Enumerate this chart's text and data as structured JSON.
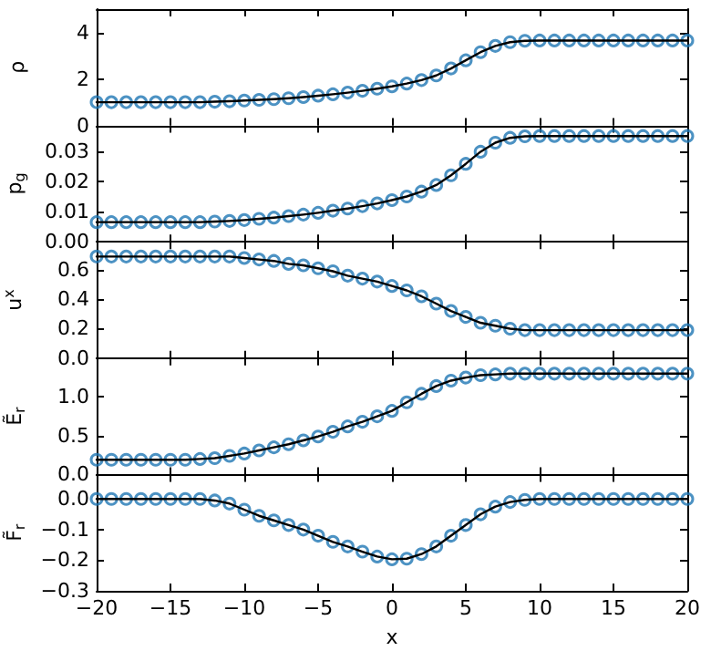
{
  "chart_data": [
    {
      "type": "line",
      "ylabel": "ρ",
      "tick_labels": "y",
      "grid": false,
      "xlim": [
        -20,
        20
      ],
      "xticks": [
        -20,
        -15,
        -10,
        -5,
        0,
        5,
        10,
        15,
        20
      ],
      "ylim": [
        0,
        5
      ],
      "yticks": [
        0,
        2,
        4
      ],
      "x": [
        -20,
        -19,
        -18,
        -17,
        -16,
        -15,
        -14,
        -13,
        -12,
        -11,
        -10,
        -9,
        -8,
        -7,
        -6,
        -5,
        -4,
        -3,
        -2,
        -1,
        0,
        1,
        2,
        3,
        4,
        5,
        6,
        7,
        8,
        9,
        10,
        11,
        12,
        13,
        14,
        15,
        16,
        17,
        18,
        19,
        20
      ],
      "series": [
        {
          "type": "line",
          "color": "#000000",
          "marker": "none",
          "line_style": "solid",
          "values": [
            1.0,
            1.0,
            1.0,
            1.0,
            1.0,
            1.0,
            1.0,
            1.0,
            1.02,
            1.04,
            1.07,
            1.1,
            1.13,
            1.17,
            1.22,
            1.28,
            1.34,
            1.41,
            1.49,
            1.58,
            1.68,
            1.8,
            1.95,
            2.15,
            2.45,
            2.8,
            3.15,
            3.42,
            3.58,
            3.64,
            3.65,
            3.65,
            3.65,
            3.65,
            3.65,
            3.65,
            3.65,
            3.65,
            3.65,
            3.65,
            3.65
          ]
        },
        {
          "type": "scatter",
          "color": "#1f77b4",
          "marker": "circle",
          "values": [
            1.0,
            1.0,
            1.0,
            1.0,
            1.0,
            1.0,
            1.0,
            1.0,
            1.02,
            1.04,
            1.07,
            1.1,
            1.13,
            1.17,
            1.22,
            1.28,
            1.34,
            1.41,
            1.49,
            1.58,
            1.68,
            1.8,
            1.95,
            2.15,
            2.45,
            2.8,
            3.15,
            3.42,
            3.58,
            3.64,
            3.65,
            3.65,
            3.65,
            3.65,
            3.65,
            3.65,
            3.65,
            3.65,
            3.65,
            3.65,
            3.65
          ]
        }
      ]
    },
    {
      "type": "line",
      "ylabel": "p$_{g}$",
      "tick_labels": "y",
      "grid": false,
      "xlim": [
        -20,
        20
      ],
      "xticks": [
        -20,
        -15,
        -10,
        -5,
        0,
        5,
        10,
        15,
        20
      ],
      "ylim": [
        0,
        0.0385
      ],
      "yticks": [
        {
          "value": 0,
          "label": "0.00"
        },
        {
          "value": 0.01,
          "label": "0.01"
        },
        {
          "value": 0.02,
          "label": "0.02"
        },
        {
          "value": 0.03,
          "label": "0.03"
        }
      ],
      "x": [
        -20,
        -19,
        -18,
        -17,
        -16,
        -15,
        -14,
        -13,
        -12,
        -11,
        -10,
        -9,
        -8,
        -7,
        -6,
        -5,
        -4,
        -3,
        -2,
        -1,
        0,
        1,
        2,
        3,
        4,
        5,
        6,
        7,
        8,
        9,
        10,
        11,
        12,
        13,
        14,
        15,
        16,
        17,
        18,
        19,
        20
      ],
      "series": [
        {
          "type": "line",
          "color": "#000000",
          "marker": "none",
          "line_style": "solid",
          "values": [
            0.0065,
            0.0065,
            0.0065,
            0.0065,
            0.0065,
            0.0065,
            0.0065,
            0.0065,
            0.0067,
            0.0069,
            0.0072,
            0.0076,
            0.008,
            0.0085,
            0.009,
            0.0096,
            0.0103,
            0.011,
            0.0118,
            0.0127,
            0.0138,
            0.015,
            0.0166,
            0.0188,
            0.022,
            0.0258,
            0.0298,
            0.0328,
            0.0344,
            0.0349,
            0.035,
            0.035,
            0.035,
            0.035,
            0.035,
            0.035,
            0.035,
            0.035,
            0.035,
            0.035,
            0.035
          ]
        },
        {
          "type": "scatter",
          "color": "#1f77b4",
          "marker": "circle",
          "values": [
            0.0065,
            0.0065,
            0.0065,
            0.0065,
            0.0065,
            0.0065,
            0.0065,
            0.0065,
            0.0067,
            0.0069,
            0.0072,
            0.0076,
            0.008,
            0.0085,
            0.009,
            0.0096,
            0.0103,
            0.011,
            0.0118,
            0.0127,
            0.0138,
            0.015,
            0.0166,
            0.0188,
            0.022,
            0.0258,
            0.0298,
            0.0328,
            0.0344,
            0.0349,
            0.035,
            0.035,
            0.035,
            0.035,
            0.035,
            0.035,
            0.035,
            0.035,
            0.035,
            0.035,
            0.035
          ]
        }
      ]
    },
    {
      "type": "line",
      "ylabel": "u$^{x}$",
      "tick_labels": "y",
      "grid": false,
      "xlim": [
        -20,
        20
      ],
      "xticks": [
        -20,
        -15,
        -10,
        -5,
        0,
        5,
        10,
        15,
        20
      ],
      "ylim": [
        0,
        0.79
      ],
      "yticks": [
        {
          "value": 0,
          "label": "0.0"
        },
        {
          "value": 0.2,
          "label": "0.2"
        },
        {
          "value": 0.4,
          "label": "0.4"
        },
        {
          "value": 0.6,
          "label": "0.6"
        }
      ],
      "x": [
        -20,
        -19,
        -18,
        -17,
        -16,
        -15,
        -14,
        -13,
        -12,
        -11,
        -10,
        -9,
        -8,
        -7,
        -6,
        -5,
        -4,
        -3,
        -2,
        -1,
        0,
        1,
        2,
        3,
        4,
        5,
        6,
        7,
        8,
        9,
        10,
        11,
        12,
        13,
        14,
        15,
        16,
        17,
        18,
        19,
        20
      ],
      "series": [
        {
          "type": "line",
          "color": "#000000",
          "marker": "none",
          "line_style": "solid",
          "values": [
            0.69,
            0.69,
            0.69,
            0.69,
            0.69,
            0.69,
            0.69,
            0.69,
            0.69,
            0.69,
            0.68,
            0.67,
            0.66,
            0.64,
            0.63,
            0.61,
            0.59,
            0.56,
            0.54,
            0.52,
            0.49,
            0.46,
            0.42,
            0.37,
            0.32,
            0.28,
            0.24,
            0.22,
            0.2,
            0.19,
            0.19,
            0.19,
            0.19,
            0.19,
            0.19,
            0.19,
            0.19,
            0.19,
            0.19,
            0.19,
            0.19
          ]
        },
        {
          "type": "scatter",
          "color": "#1f77b4",
          "marker": "circle",
          "values": [
            0.69,
            0.69,
            0.69,
            0.69,
            0.69,
            0.69,
            0.69,
            0.69,
            0.69,
            0.69,
            0.68,
            0.67,
            0.66,
            0.64,
            0.63,
            0.61,
            0.59,
            0.56,
            0.54,
            0.52,
            0.49,
            0.46,
            0.42,
            0.37,
            0.32,
            0.28,
            0.24,
            0.22,
            0.2,
            0.19,
            0.19,
            0.19,
            0.19,
            0.19,
            0.19,
            0.19,
            0.19,
            0.19,
            0.19,
            0.19,
            0.19
          ]
        }
      ]
    },
    {
      "type": "line",
      "ylabel": "Ẽ$_{r}$",
      "tick_labels": "y",
      "grid": false,
      "xlim": [
        -20,
        20
      ],
      "xticks": [
        -20,
        -15,
        -10,
        -5,
        0,
        5,
        10,
        15,
        20
      ],
      "ylim": [
        0,
        1.5
      ],
      "yticks": [
        {
          "value": 0,
          "label": "0.0"
        },
        {
          "value": 0.5,
          "label": "0.5"
        },
        {
          "value": 1,
          "label": "1.0"
        }
      ],
      "x": [
        -20,
        -19,
        -18,
        -17,
        -16,
        -15,
        -14,
        -13,
        -12,
        -11,
        -10,
        -9,
        -8,
        -7,
        -6,
        -5,
        -4,
        -3,
        -2,
        -1,
        0,
        1,
        2,
        3,
        4,
        5,
        6,
        7,
        8,
        9,
        10,
        11,
        12,
        13,
        14,
        15,
        16,
        17,
        18,
        19,
        20
      ],
      "series": [
        {
          "type": "line",
          "color": "#000000",
          "marker": "none",
          "line_style": "solid",
          "values": [
            0.19,
            0.19,
            0.19,
            0.19,
            0.19,
            0.19,
            0.19,
            0.2,
            0.21,
            0.24,
            0.27,
            0.31,
            0.35,
            0.39,
            0.44,
            0.49,
            0.55,
            0.62,
            0.68,
            0.75,
            0.82,
            0.93,
            1.04,
            1.14,
            1.21,
            1.25,
            1.28,
            1.29,
            1.3,
            1.3,
            1.3,
            1.3,
            1.3,
            1.3,
            1.3,
            1.3,
            1.3,
            1.3,
            1.3,
            1.3,
            1.3
          ]
        },
        {
          "type": "scatter",
          "color": "#1f77b4",
          "marker": "circle",
          "values": [
            0.19,
            0.19,
            0.19,
            0.19,
            0.19,
            0.19,
            0.19,
            0.2,
            0.21,
            0.24,
            0.27,
            0.31,
            0.35,
            0.39,
            0.44,
            0.49,
            0.55,
            0.62,
            0.68,
            0.75,
            0.82,
            0.93,
            1.04,
            1.14,
            1.21,
            1.25,
            1.28,
            1.29,
            1.3,
            1.3,
            1.3,
            1.3,
            1.3,
            1.3,
            1.3,
            1.3,
            1.3,
            1.3,
            1.3,
            1.3,
            1.3
          ]
        }
      ]
    },
    {
      "type": "line",
      "ylabel": "F̃$_{r}$",
      "xlabel": "x",
      "grid": false,
      "xlim": [
        -20,
        20
      ],
      "xticks": [
        {
          "value": -20,
          "label": "−20"
        },
        {
          "value": -15,
          "label": "−15"
        },
        {
          "value": -10,
          "label": "−10"
        },
        {
          "value": -5,
          "label": "−5"
        },
        0,
        5,
        10,
        15,
        20
      ],
      "ylim": [
        -0.3,
        0.08
      ],
      "yticks": [
        {
          "value": -0.3,
          "label": "−0.3"
        },
        {
          "value": -0.2,
          "label": "−0.2"
        },
        {
          "value": -0.1,
          "label": "−0.1"
        },
        {
          "value": 0,
          "label": "0.0"
        }
      ],
      "x": [
        -20,
        -19,
        -18,
        -17,
        -16,
        -15,
        -14,
        -13,
        -12,
        -11,
        -10,
        -9,
        -8,
        -7,
        -6,
        -5,
        -4,
        -3,
        -2,
        -1,
        0,
        1,
        2,
        3,
        4,
        5,
        6,
        7,
        8,
        9,
        10,
        11,
        12,
        13,
        14,
        15,
        16,
        17,
        18,
        19,
        20
      ],
      "series": [
        {
          "type": "line",
          "color": "#000000",
          "marker": "none",
          "line_style": "solid",
          "values": [
            0,
            0,
            0,
            0,
            0,
            0,
            0,
            0,
            -0.005,
            -0.015,
            -0.035,
            -0.055,
            -0.07,
            -0.085,
            -0.1,
            -0.12,
            -0.14,
            -0.155,
            -0.172,
            -0.188,
            -0.197,
            -0.195,
            -0.18,
            -0.155,
            -0.12,
            -0.085,
            -0.05,
            -0.025,
            -0.01,
            -0.003,
            0,
            0,
            0,
            0,
            0,
            0,
            0,
            0,
            0,
            0,
            0
          ]
        },
        {
          "type": "scatter",
          "color": "#1f77b4",
          "marker": "circle",
          "values": [
            0,
            0,
            0,
            0,
            0,
            0,
            0,
            0,
            -0.005,
            -0.015,
            -0.035,
            -0.055,
            -0.07,
            -0.085,
            -0.1,
            -0.12,
            -0.14,
            -0.155,
            -0.172,
            -0.188,
            -0.197,
            -0.195,
            -0.18,
            -0.155,
            -0.12,
            -0.085,
            -0.05,
            -0.025,
            -0.01,
            -0.003,
            0,
            0,
            0,
            0,
            0,
            0,
            0,
            0,
            0,
            0,
            0
          ]
        }
      ]
    }
  ]
}
